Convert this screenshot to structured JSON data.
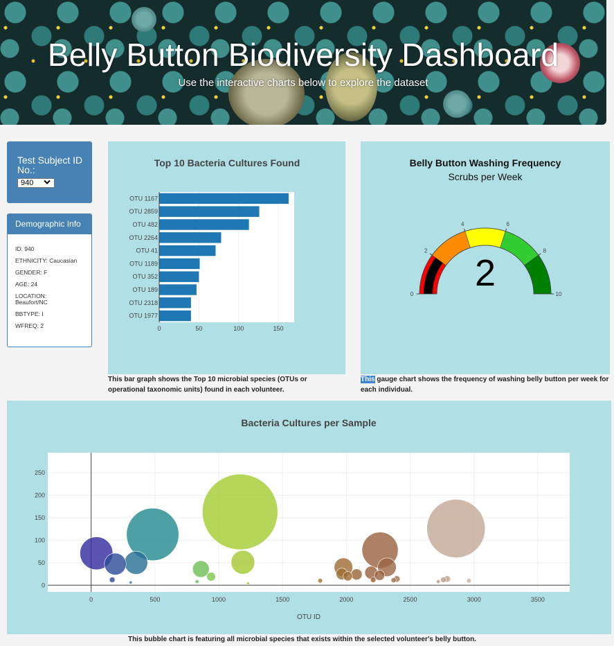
{
  "header": {
    "title": "Belly Button Biodiversity Dashboard",
    "subtitle": "Use the interactive charts below to explore the dataset"
  },
  "selector": {
    "label": "Test Subject ID No.:",
    "selected": "940"
  },
  "demographics": {
    "title": "Demographic Info",
    "rows": [
      "ID: 940",
      "ETHNICITY: Caucasian",
      "GENDER: F",
      "AGE: 24",
      "LOCATION: Beaufort/NC",
      "BBTYPE: I",
      "WFREQ: 2"
    ]
  },
  "captions": {
    "bar_pre": "",
    "bar": "This bar graph shows the Top 10 microbial species (OTUs or operational taxonomic units) found in each volunteer.",
    "gauge_highlight": "This",
    "gauge": " gauge chart shows the frequency of washing belly button per week for each individual.",
    "bubble": "This bubble chart is featuring all microbial species that exists within the selected volunteer's belly button."
  },
  "colors": {
    "panel_bg": "#b0e0e6",
    "accent": "#4682b4",
    "bar_color": "#1f77b4"
  },
  "chart_data": [
    {
      "type": "bar",
      "orientation": "horizontal",
      "title": "Top 10 Bacteria Cultures Found",
      "categories": [
        "OTU 1167",
        "OTU 2859",
        "OTU 482",
        "OTU 2264",
        "OTU 41",
        "OTU 1189",
        "OTU 352",
        "OTU 189",
        "OTU 2318",
        "OTU 1977"
      ],
      "values": [
        163,
        126,
        113,
        78,
        71,
        51,
        50,
        47,
        40,
        40
      ],
      "xlim": [
        0,
        170
      ],
      "xticks": [
        0,
        50,
        100,
        150
      ]
    },
    {
      "type": "gauge",
      "title": "Belly Button Washing Frequency",
      "subtitle": "Scrubs per Week",
      "value": 2,
      "range": [
        0,
        10
      ],
      "tick_labels": [
        "0",
        "2",
        "4",
        "6",
        "8",
        "10"
      ],
      "bands": [
        {
          "from": 0,
          "to": 2,
          "color": "#ff0000"
        },
        {
          "from": 2,
          "to": 4,
          "color": "#ff8c00"
        },
        {
          "from": 4,
          "to": 6,
          "color": "#ffff00"
        },
        {
          "from": 6,
          "to": 8,
          "color": "#32cd32"
        },
        {
          "from": 8,
          "to": 10,
          "color": "#008000"
        }
      ],
      "bar_color": "#000000"
    },
    {
      "type": "scatter",
      "subtype": "bubble",
      "title": "Bacteria Cultures per Sample",
      "xlabel": "OTU ID",
      "ylabel": "",
      "xlim": [
        -340,
        3750
      ],
      "ylim": [
        -15,
        295
      ],
      "xticks": [
        0,
        500,
        1000,
        1500,
        2000,
        2500,
        3000,
        3500
      ],
      "yticks": [
        0,
        50,
        100,
        150,
        200,
        250
      ],
      "points": [
        {
          "x": 41,
          "y": 71
        },
        {
          "x": 189,
          "y": 47
        },
        {
          "x": 165,
          "y": 12
        },
        {
          "x": 352,
          "y": 50
        },
        {
          "x": 482,
          "y": 113
        },
        {
          "x": 310,
          "y": 6
        },
        {
          "x": 860,
          "y": 36
        },
        {
          "x": 940,
          "y": 19
        },
        {
          "x": 830,
          "y": 8
        },
        {
          "x": 1167,
          "y": 163
        },
        {
          "x": 1189,
          "y": 51
        },
        {
          "x": 1230,
          "y": 4
        },
        {
          "x": 1795,
          "y": 10
        },
        {
          "x": 1977,
          "y": 40
        },
        {
          "x": 1965,
          "y": 25
        },
        {
          "x": 2011,
          "y": 20
        },
        {
          "x": 2080,
          "y": 24
        },
        {
          "x": 2264,
          "y": 78
        },
        {
          "x": 2318,
          "y": 40
        },
        {
          "x": 2195,
          "y": 28
        },
        {
          "x": 2210,
          "y": 12
        },
        {
          "x": 2260,
          "y": 22
        },
        {
          "x": 2370,
          "y": 11
        },
        {
          "x": 2395,
          "y": 14
        },
        {
          "x": 2720,
          "y": 8
        },
        {
          "x": 2760,
          "y": 12
        },
        {
          "x": 2790,
          "y": 14
        },
        {
          "x": 2859,
          "y": 126
        },
        {
          "x": 2960,
          "y": 10
        }
      ]
    }
  ]
}
